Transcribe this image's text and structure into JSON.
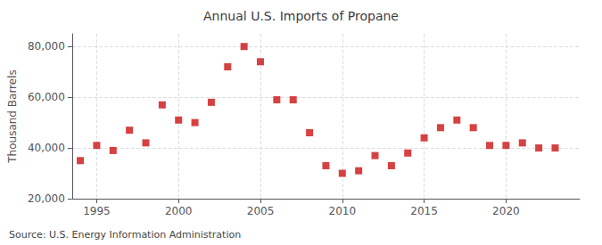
{
  "chart_data": {
    "type": "scatter",
    "title": "Annual U.S. Imports of Propane",
    "ylabel": "Thousand Barrels",
    "source": "Source: U.S. Energy Information Administration",
    "x": [
      1994,
      1995,
      1996,
      1997,
      1998,
      1999,
      2000,
      2001,
      2002,
      2003,
      2004,
      2005,
      2006,
      2007,
      2008,
      2009,
      2010,
      2011,
      2012,
      2013,
      2014,
      2015,
      2016,
      2017,
      2018,
      2019,
      2020,
      2021,
      2022,
      2023
    ],
    "values": [
      35000,
      41000,
      39000,
      47000,
      42000,
      57000,
      51000,
      50000,
      58000,
      72000,
      80000,
      74000,
      59000,
      59000,
      46000,
      33000,
      30000,
      31000,
      37000,
      33000,
      38000,
      44000,
      48000,
      51000,
      48000,
      41000,
      41000,
      42000,
      40000,
      40000
    ],
    "color": "#cc1111",
    "marker": "square",
    "xlim": [
      1993.5,
      2024.5
    ],
    "xticks": [
      1995,
      2000,
      2005,
      2010,
      2015,
      2020
    ],
    "ylim": [
      20000,
      85000
    ],
    "yticks": [
      {
        "value": 20000,
        "label": "20,000"
      },
      {
        "value": 40000,
        "label": "40,000"
      },
      {
        "value": 60000,
        "label": "60,000"
      },
      {
        "value": 80000,
        "label": "80,000"
      }
    ],
    "grid": true
  }
}
